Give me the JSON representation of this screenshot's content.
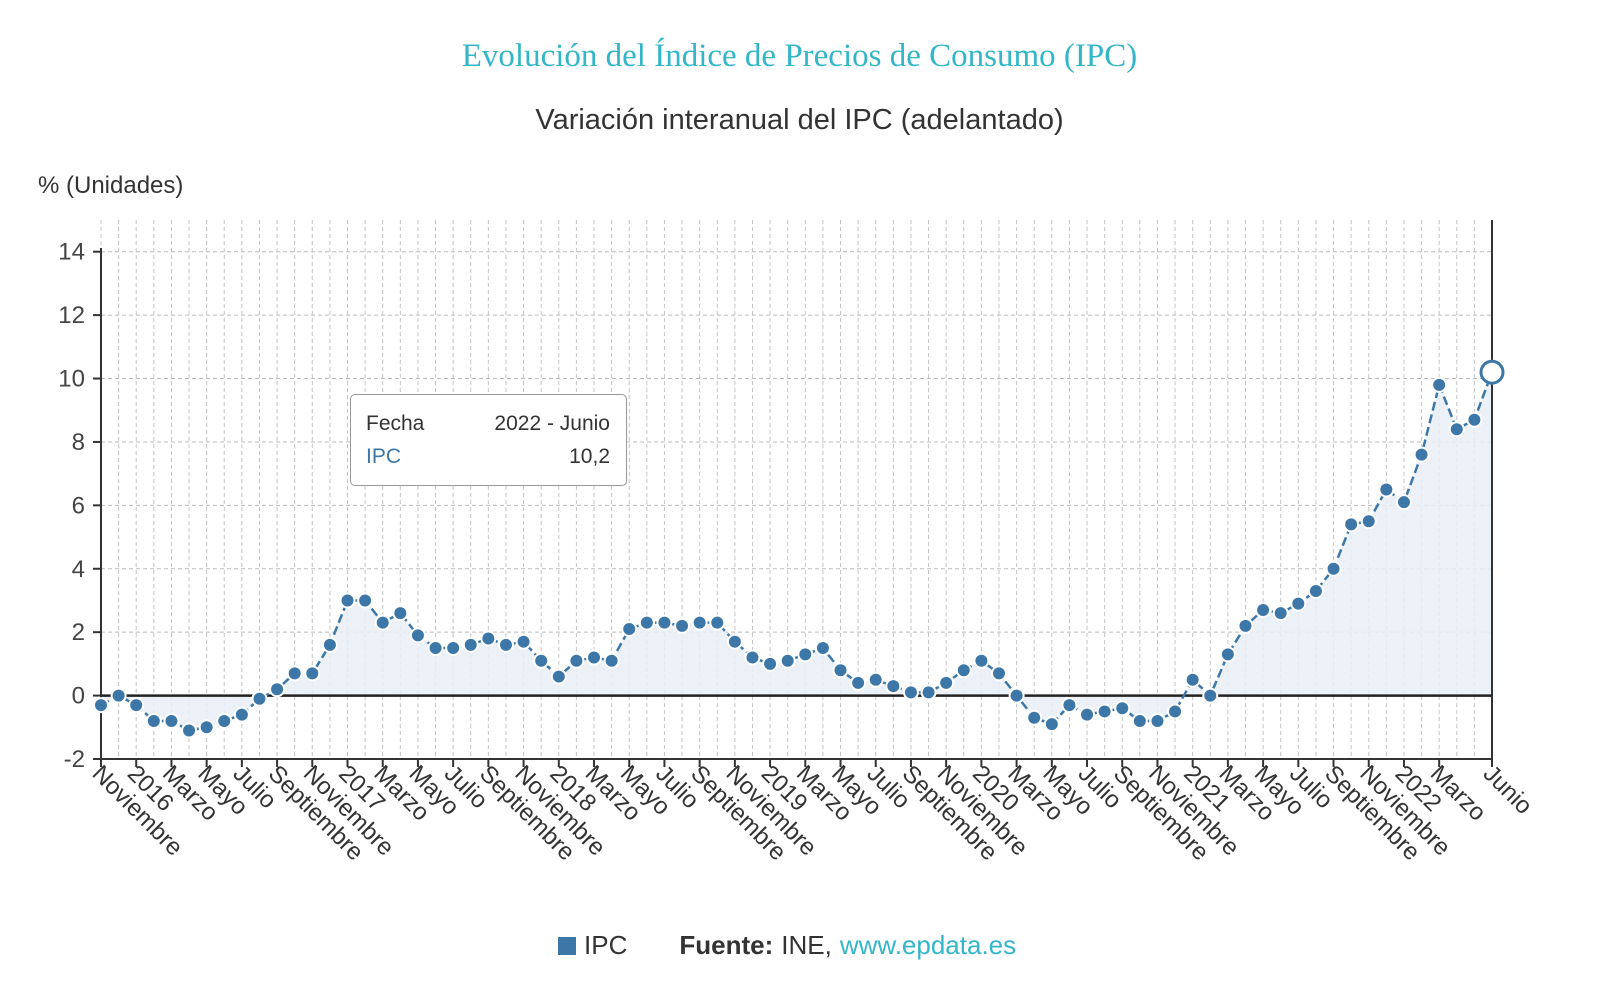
{
  "header": {
    "title": "Evolución del Índice de Precios de Consumo (IPC)",
    "subtitle": "Variación interanual del IPC (adelantado)",
    "unit_label": "% (Unidades)"
  },
  "tooltip": {
    "key1": "Fecha",
    "val1": "2022 - Junio",
    "key2": "IPC",
    "val2": "10,2"
  },
  "legend": {
    "series_label": "IPC",
    "source_label": "Fuente:",
    "source_value": "INE,",
    "source_link": "www.epdata.es"
  },
  "colors": {
    "title": "#33b6c8",
    "series": "#3d77a8",
    "area": "#e9eff7"
  },
  "chart_data": {
    "type": "line",
    "title": "Variación interanual del IPC (adelantado)",
    "ylabel": "% (Unidades)",
    "ylim": [
      -2,
      15
    ],
    "yticks": [
      -2,
      0,
      2,
      4,
      6,
      8,
      10,
      12,
      14
    ],
    "x": [
      "2015-11",
      "2015-12",
      "2016-01",
      "2016-02",
      "2016-03",
      "2016-04",
      "2016-05",
      "2016-06",
      "2016-07",
      "2016-08",
      "2016-09",
      "2016-10",
      "2016-11",
      "2016-12",
      "2017-01",
      "2017-02",
      "2017-03",
      "2017-04",
      "2017-05",
      "2017-06",
      "2017-07",
      "2017-08",
      "2017-09",
      "2017-10",
      "2017-11",
      "2017-12",
      "2018-01",
      "2018-02",
      "2018-03",
      "2018-04",
      "2018-05",
      "2018-06",
      "2018-07",
      "2018-08",
      "2018-09",
      "2018-10",
      "2018-11",
      "2018-12",
      "2019-01",
      "2019-02",
      "2019-03",
      "2019-04",
      "2019-05",
      "2019-06",
      "2019-07",
      "2019-08",
      "2019-09",
      "2019-10",
      "2019-11",
      "2019-12",
      "2020-01",
      "2020-02",
      "2020-03",
      "2020-04",
      "2020-05",
      "2020-06",
      "2020-07",
      "2020-08",
      "2020-09",
      "2020-10",
      "2020-11",
      "2020-12",
      "2021-01",
      "2021-02",
      "2021-03",
      "2021-04",
      "2021-05",
      "2021-06",
      "2021-07",
      "2021-08",
      "2021-09",
      "2021-10",
      "2021-11",
      "2021-12",
      "2022-01",
      "2022-02",
      "2022-03",
      "2022-04",
      "2022-05",
      "2022-06"
    ],
    "tick_labels": [
      "Noviembre",
      "2016",
      "Marzo",
      "Mayo",
      "Julio",
      "Septiembre",
      "Noviembre",
      "2017",
      "Marzo",
      "Mayo",
      "Julio",
      "Septiembre",
      "Noviembre",
      "2018",
      "Marzo",
      "Mayo",
      "Julio",
      "Septiembre",
      "Noviembre",
      "2019",
      "Marzo",
      "Mayo",
      "Julio",
      "Septiembre",
      "Noviembre",
      "2020",
      "Marzo",
      "Mayo",
      "Julio",
      "Septiembre",
      "Noviembre",
      "2021",
      "Marzo",
      "Mayo",
      "Julio",
      "Septiembre",
      "Noviembre",
      "2022",
      "Marzo",
      "Junio"
    ],
    "tick_indices": [
      0,
      2,
      4,
      6,
      8,
      10,
      12,
      14,
      16,
      18,
      20,
      22,
      24,
      26,
      28,
      30,
      32,
      34,
      36,
      38,
      40,
      42,
      44,
      46,
      48,
      50,
      52,
      54,
      56,
      58,
      60,
      62,
      64,
      66,
      68,
      70,
      72,
      74,
      76,
      79
    ],
    "series": [
      {
        "name": "IPC",
        "values": [
          -0.3,
          0.0,
          -0.3,
          -0.8,
          -0.8,
          -1.1,
          -1.0,
          -0.8,
          -0.6,
          -0.1,
          0.2,
          0.7,
          0.7,
          1.6,
          3.0,
          3.0,
          2.3,
          2.6,
          1.9,
          1.5,
          1.5,
          1.6,
          1.8,
          1.6,
          1.7,
          1.1,
          0.6,
          1.1,
          1.2,
          1.1,
          2.1,
          2.3,
          2.3,
          2.2,
          2.3,
          2.3,
          1.7,
          1.2,
          1.0,
          1.1,
          1.3,
          1.5,
          0.8,
          0.4,
          0.5,
          0.3,
          0.1,
          0.1,
          0.4,
          0.8,
          1.1,
          0.7,
          0.0,
          -0.7,
          -0.9,
          -0.3,
          -0.6,
          -0.5,
          -0.4,
          -0.8,
          -0.8,
          -0.5,
          0.5,
          0.0,
          1.3,
          2.2,
          2.7,
          2.6,
          2.9,
          3.3,
          4.0,
          5.4,
          5.5,
          6.5,
          6.1,
          7.6,
          9.8,
          8.4,
          8.7,
          10.2
        ]
      }
    ],
    "highlight_index": 79,
    "grid": true,
    "legend_position": "bottom"
  }
}
